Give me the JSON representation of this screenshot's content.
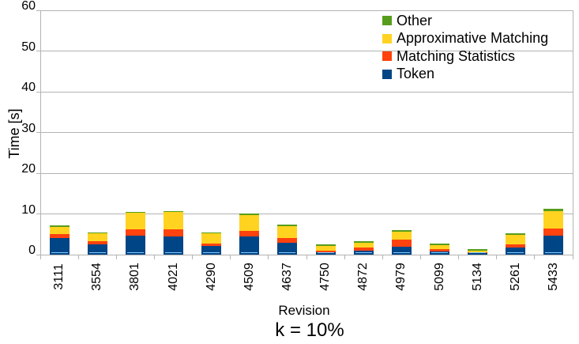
{
  "title": "k = 10%",
  "chart_data": {
    "type": "bar",
    "stacked": true,
    "title": "k = 10%",
    "xlabel": "Revision",
    "ylabel": "Time [s]",
    "categories": [
      "3111",
      "3554",
      "3801",
      "4021",
      "4290",
      "4509",
      "4637",
      "4750",
      "4872",
      "4979",
      "5099",
      "5134",
      "5261",
      "5433"
    ],
    "series": [
      {
        "name": "Token",
        "color": "#004586",
        "values": [
          4.1,
          2.5,
          4.7,
          4.55,
          2.2,
          4.4,
          3.0,
          0.6,
          1.0,
          1.9,
          0.8,
          0.35,
          1.8,
          4.6
        ]
      },
      {
        "name": "Matching Statistics",
        "color": "#ff420e",
        "values": [
          0.9,
          0.8,
          1.5,
          1.7,
          0.5,
          1.5,
          1.0,
          0.45,
          0.75,
          1.75,
          0.5,
          0.25,
          0.65,
          1.9
        ]
      },
      {
        "name": "Approximative Matching",
        "color": "#ffd320",
        "values": [
          1.85,
          1.95,
          4.1,
          4.15,
          2.45,
          3.9,
          3.0,
          1.15,
          1.25,
          1.95,
          1.1,
          0.45,
          2.5,
          4.2
        ]
      },
      {
        "name": "Other",
        "color": "#579d1c",
        "values": [
          0.35,
          0.2,
          0.25,
          0.25,
          0.3,
          0.3,
          0.4,
          0.25,
          0.3,
          0.4,
          0.3,
          0.3,
          0.35,
          0.5
        ]
      }
    ],
    "ylim": [
      0,
      60
    ],
    "ytick_step": 10,
    "grid": "horizontal",
    "legend_position": "top-right-inside",
    "legend_order_top_to_bottom": [
      "Other",
      "Approximative Matching",
      "Matching Statistics",
      "Token"
    ]
  },
  "colors": {
    "grid": "#b3b3b3",
    "axis": "#b3b3b3",
    "text": "#000000",
    "bar_highlight": "#83caff",
    "background": "#ffffff"
  }
}
